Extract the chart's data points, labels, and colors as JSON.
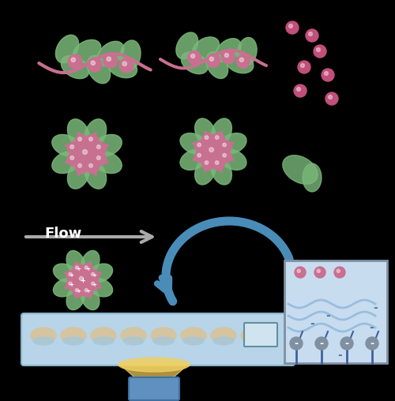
{
  "bg_color": "#000000",
  "pink_color": "#C87090",
  "green_color": "#7AB87A",
  "pink_dark": "#C0507A",
  "blue_arrow": "#4A8CB8",
  "flow_arrow_color": "#AAAAAA",
  "flow_text_color": "#FFFFFF",
  "chip_blue": "#B8D4E8",
  "chip_beige": "#D4C4A0",
  "chip_blue2": "#7AAAC8",
  "laser_yellow": "#F0D060",
  "laser_blue": "#6090C0",
  "inset_bg": "#C8DCF0",
  "dots_color": "#D0305A",
  "plus_color": "#FFFFFF",
  "title": "",
  "fig_width": 5.0,
  "fig_height": 5.08
}
